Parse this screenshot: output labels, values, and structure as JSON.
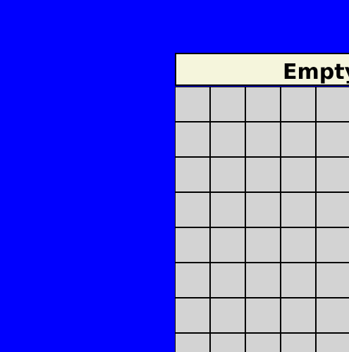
{
  "header": {
    "title": "Empty"
  },
  "colors": {
    "background": "#0000FF",
    "header_bg": "#F5F5DC",
    "cell_bg": "#D3D3D3",
    "grid_lines": "#000000"
  },
  "grid": {
    "visible_rows": 8,
    "visible_columns": 5
  }
}
